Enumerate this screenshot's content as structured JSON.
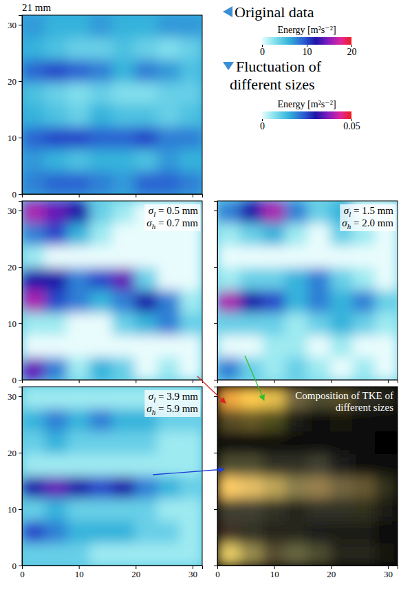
{
  "chart_data": {
    "type": "heatmap",
    "title": "21 mm",
    "xlim": [
      0,
      31.7
    ],
    "ylim": [
      0,
      31.7
    ],
    "xticks": [
      0,
      10,
      20,
      30
    ],
    "yticks": [
      0,
      10,
      20,
      30
    ],
    "original": {
      "name": "Original data",
      "colorbar_title": "Energy [m²s⁻²]",
      "colorbar_range": [
        0,
        20
      ],
      "colorbar_ticks": [
        0,
        10,
        20
      ],
      "cells": [
        [
          7,
          6,
          6,
          7,
          6,
          6,
          7,
          7
        ],
        [
          6,
          5,
          4,
          4,
          5,
          4,
          3,
          4
        ],
        [
          9,
          10,
          9,
          8,
          6,
          8,
          7,
          5
        ],
        [
          5,
          4,
          3,
          4,
          3,
          3,
          4,
          4
        ],
        [
          6,
          5,
          4,
          6,
          5,
          5,
          4,
          5
        ],
        [
          9,
          10,
          10,
          9,
          9,
          10,
          8,
          8
        ],
        [
          7,
          6,
          5,
          6,
          6,
          5,
          7,
          6
        ],
        [
          8,
          9,
          9,
          8,
          7,
          9,
          9,
          8
        ]
      ]
    },
    "fluctuations": {
      "name": "Fluctuation of different sizes",
      "colorbar_title": "Energy [m²s⁻²]",
      "colorbar_range": [
        0,
        0.05
      ],
      "colorbar_ticks": [
        0,
        0.05
      ],
      "panels": [
        {
          "labels": [
            "σl = 0.5 mm",
            "σh = 0.7 mm"
          ],
          "color": "#d7261e",
          "cells": [
            [
              0.04,
              0.035,
              0.03,
              0.01,
              0.005,
              0,
              0,
              0
            ],
            [
              0.02,
              0.025,
              0.015,
              0.005,
              0,
              0,
              0,
              0
            ],
            [
              0.005,
              0,
              0,
              0,
              0,
              0,
              0,
              0
            ],
            [
              0.03,
              0.03,
              0.02,
              0.025,
              0.035,
              0.01,
              0,
              0
            ],
            [
              0.04,
              0.025,
              0.02,
              0.015,
              0.02,
              0.03,
              0.02,
              0.005
            ],
            [
              0.005,
              0.005,
              0,
              0,
              0.01,
              0.015,
              0.02,
              0.01
            ],
            [
              0,
              0,
              0,
              0,
              0,
              0,
              0,
              0
            ],
            [
              0.035,
              0.02,
              0.005,
              0.015,
              0.01,
              0,
              0.005,
              0
            ]
          ]
        },
        {
          "labels": [
            "σl = 1.5 mm",
            "σh = 2.0 mm"
          ],
          "color": "#2fc02a",
          "cells": [
            [
              0.02,
              0.03,
              0.04,
              0.02,
              0.01,
              0.015,
              0,
              0
            ],
            [
              0.005,
              0.01,
              0.015,
              0.005,
              0,
              0.01,
              0.005,
              0
            ],
            [
              0,
              0,
              0,
              0,
              0,
              0,
              0,
              0
            ],
            [
              0.005,
              0.01,
              0.01,
              0.015,
              0.02,
              0.01,
              0.005,
              0
            ],
            [
              0.04,
              0.03,
              0.025,
              0.015,
              0.02,
              0.015,
              0.02,
              0.01
            ],
            [
              0.01,
              0.01,
              0.01,
              0.005,
              0.01,
              0.015,
              0.01,
              0.005
            ],
            [
              0,
              0,
              0.005,
              0.005,
              0,
              0.005,
              0,
              0
            ],
            [
              0.02,
              0.01,
              0.005,
              0.01,
              0.005,
              0,
              0.005,
              0
            ]
          ]
        },
        {
          "labels": [
            "σl = 3.9 mm",
            "σh = 5.9 mm"
          ],
          "color": "#1f3fd8",
          "cells": [
            [
              0.005,
              0.005,
              0.005,
              0.005,
              0.005,
              0.005,
              0.005,
              0.005
            ],
            [
              0.015,
              0.02,
              0.015,
              0.02,
              0.015,
              0.015,
              0.01,
              0.01
            ],
            [
              0.01,
              0.015,
              0.01,
              0.01,
              0.01,
              0.01,
              0.005,
              0.005
            ],
            [
              0.005,
              0.005,
              0.005,
              0.005,
              0.005,
              0.005,
              0.005,
              0.005
            ],
            [
              0.03,
              0.035,
              0.03,
              0.025,
              0.03,
              0.02,
              0.015,
              0.01
            ],
            [
              0.01,
              0.015,
              0.01,
              0.01,
              0.01,
              0.01,
              0.005,
              0.005
            ],
            [
              0.025,
              0.02,
              0.015,
              0.015,
              0.015,
              0.01,
              0.01,
              0.005
            ],
            [
              0.01,
              0.01,
              0.01,
              0.005,
              0.005,
              0.005,
              0.005,
              0.005
            ]
          ]
        }
      ]
    },
    "composition": {
      "label": "Composition of TKE of different sizes",
      "cells": [
        [
          [
            0.95,
            0.65,
            0.25
          ],
          [
            1,
            0.8,
            0.3
          ],
          [
            0.9,
            0.75,
            0.3
          ],
          [
            0.45,
            0.4,
            0.25
          ],
          [
            0.3,
            0.3,
            0.2
          ],
          [
            0.35,
            0.3,
            0.15
          ],
          [
            0.2,
            0.2,
            0.15
          ],
          [
            0.15,
            0.15,
            0.12
          ]
        ],
        [
          [
            0.35,
            0.3,
            0.15
          ],
          [
            0.4,
            0.35,
            0.15
          ],
          [
            0.3,
            0.3,
            0.12
          ],
          [
            0.1,
            0.1,
            0.08
          ],
          [
            0.05,
            0.05,
            0.05
          ],
          [
            0.08,
            0.08,
            0.05
          ],
          [
            0.05,
            0.05,
            0.05
          ],
          [
            0.03,
            0.03,
            0.03
          ]
        ],
        [
          [
            0.06,
            0.06,
            0.05
          ],
          [
            0.05,
            0.05,
            0.04
          ],
          [
            0.04,
            0.04,
            0.04
          ],
          [
            0.04,
            0.04,
            0.03
          ],
          [
            0.03,
            0.03,
            0.03
          ],
          [
            0.03,
            0.03,
            0.03
          ],
          [
            0.03,
            0.03,
            0.03
          ],
          [
            0.02,
            0.02,
            0.02
          ]
        ],
        [
          [
            0.3,
            0.3,
            0.2
          ],
          [
            0.3,
            0.3,
            0.2
          ],
          [
            0.2,
            0.2,
            0.15
          ],
          [
            0.2,
            0.2,
            0.15
          ],
          [
            0.25,
            0.25,
            0.2
          ],
          [
            0.12,
            0.12,
            0.1
          ],
          [
            0.05,
            0.05,
            0.05
          ],
          [
            0.03,
            0.03,
            0.03
          ]
        ],
        [
          [
            1,
            0.8,
            0.4
          ],
          [
            0.9,
            0.75,
            0.4
          ],
          [
            0.75,
            0.65,
            0.35
          ],
          [
            0.55,
            0.5,
            0.3
          ],
          [
            0.6,
            0.5,
            0.3
          ],
          [
            0.45,
            0.4,
            0.25
          ],
          [
            0.4,
            0.35,
            0.2
          ],
          [
            0.2,
            0.2,
            0.1
          ]
        ],
        [
          [
            0.25,
            0.25,
            0.2
          ],
          [
            0.25,
            0.25,
            0.2
          ],
          [
            0.2,
            0.2,
            0.15
          ],
          [
            0.15,
            0.15,
            0.12
          ],
          [
            0.2,
            0.2,
            0.15
          ],
          [
            0.2,
            0.2,
            0.15
          ],
          [
            0.2,
            0.2,
            0.12
          ],
          [
            0.1,
            0.1,
            0.08
          ]
        ],
        [
          [
            0.25,
            0.2,
            0.15
          ],
          [
            0.2,
            0.2,
            0.15
          ],
          [
            0.15,
            0.15,
            0.12
          ],
          [
            0.15,
            0.15,
            0.12
          ],
          [
            0.12,
            0.12,
            0.1
          ],
          [
            0.1,
            0.1,
            0.08
          ],
          [
            0.1,
            0.1,
            0.08
          ],
          [
            0.05,
            0.05,
            0.05
          ]
        ],
        [
          [
            0.9,
            0.8,
            0.4
          ],
          [
            0.6,
            0.55,
            0.3
          ],
          [
            0.35,
            0.3,
            0.2
          ],
          [
            0.4,
            0.4,
            0.25
          ],
          [
            0.3,
            0.3,
            0.2
          ],
          [
            0.15,
            0.15,
            0.1
          ],
          [
            0.15,
            0.15,
            0.1
          ],
          [
            0.08,
            0.08,
            0.06
          ]
        ]
      ]
    }
  }
}
